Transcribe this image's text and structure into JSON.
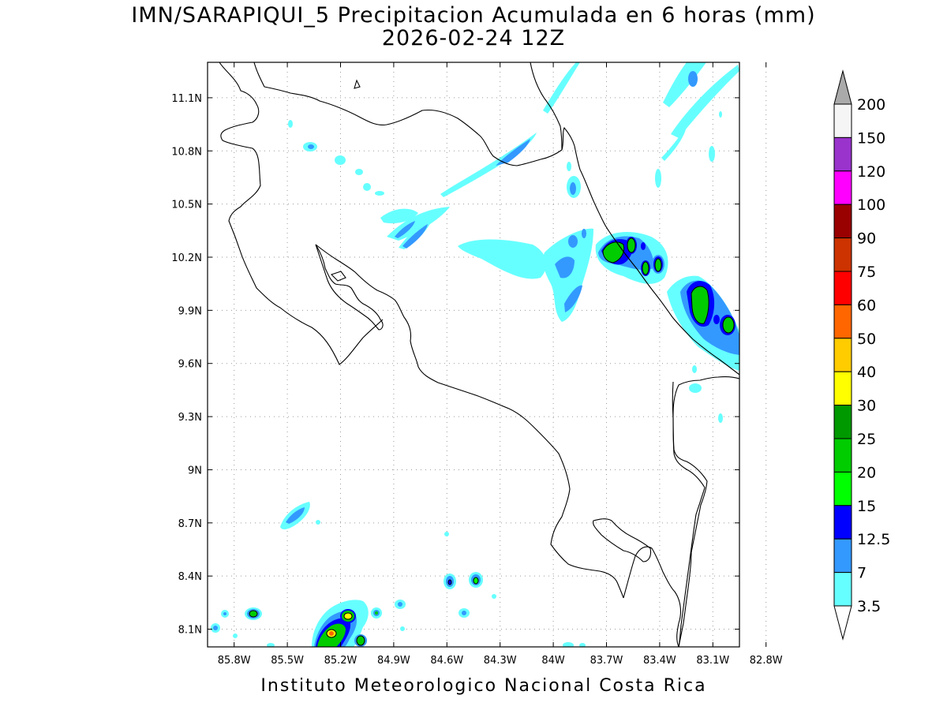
{
  "title": {
    "line1": "IMN/SARAPIQUI_5 Precipitacion Acumulada en 6 horas (mm)",
    "line2": "2026-02-24 12Z"
  },
  "footer": "Instituto Meteorologico Nacional Costa Rica",
  "axes": {
    "lat_labels": [
      "11.1N",
      "10.8N",
      "10.5N",
      "10.2N",
      "9.9N",
      "9.6N",
      "9.3N",
      "9N",
      "8.7N",
      "8.4N",
      "8.1N"
    ],
    "lon_labels": [
      "85.8W",
      "85.5W",
      "85.2W",
      "84.9W",
      "84.6W",
      "84.3W",
      "84W",
      "83.7W",
      "83.4W",
      "83.1W",
      "82.8W"
    ],
    "lat_range": [
      8.0,
      11.3
    ],
    "lon_range": [
      -85.95,
      -82.95
    ],
    "grid": true
  },
  "colorbar": {
    "labels": [
      "200",
      "150",
      "120",
      "100",
      "90",
      "75",
      "60",
      "50",
      "40",
      "30",
      "25",
      "20",
      "15",
      "12.5",
      "7",
      "3.5"
    ],
    "colors": [
      "#f5f5f5",
      "#9933cc",
      "#ff00ff",
      "#990000",
      "#cc3300",
      "#ff0000",
      "#ff6600",
      "#ffcc00",
      "#ffff00",
      "#009900",
      "#00cc00",
      "#00ff00",
      "#0000ff",
      "#3399ff",
      "#66ffff"
    ],
    "overflow_top_color": "#aaaaaa",
    "underflow_color": "#ffffff",
    "units": "mm"
  },
  "precip_colors": {
    "p3_5": "#66ffff",
    "p7": "#3399ff",
    "p12_5": "#0000ff",
    "p15": "#00ff00",
    "p20": "#00cc00",
    "p25": "#009900",
    "p40": "#ffff00",
    "p50": "#ffcc00",
    "p60": "#ff6600"
  }
}
